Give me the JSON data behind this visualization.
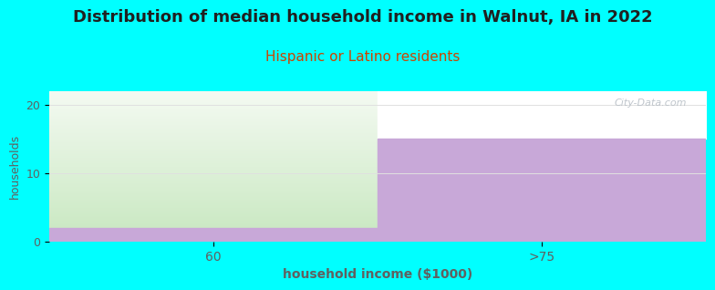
{
  "title": "Distribution of median household income in Walnut, IA in 2022",
  "subtitle": "Hispanic or Latino residents",
  "xlabel": "household income ($1000)",
  "ylabel": "households",
  "categories": [
    "60",
    ">75"
  ],
  "bar_values": [
    2,
    15
  ],
  "bar_color": "#c8a8d8",
  "background_color": "#00ffff",
  "plot_bg_color": "#ffffff",
  "green_fill_color_bottom": "#c8e8c0",
  "green_fill_color_top": "#f0f8ee",
  "ylim": [
    0,
    22
  ],
  "yticks": [
    0,
    10,
    20
  ],
  "title_fontsize": 13,
  "subtitle_fontsize": 11,
  "subtitle_color": "#cc4400",
  "watermark": "City-Data.com",
  "grid_color": "#e0e0e0",
  "tick_color": "#606060",
  "label_color": "#606060"
}
